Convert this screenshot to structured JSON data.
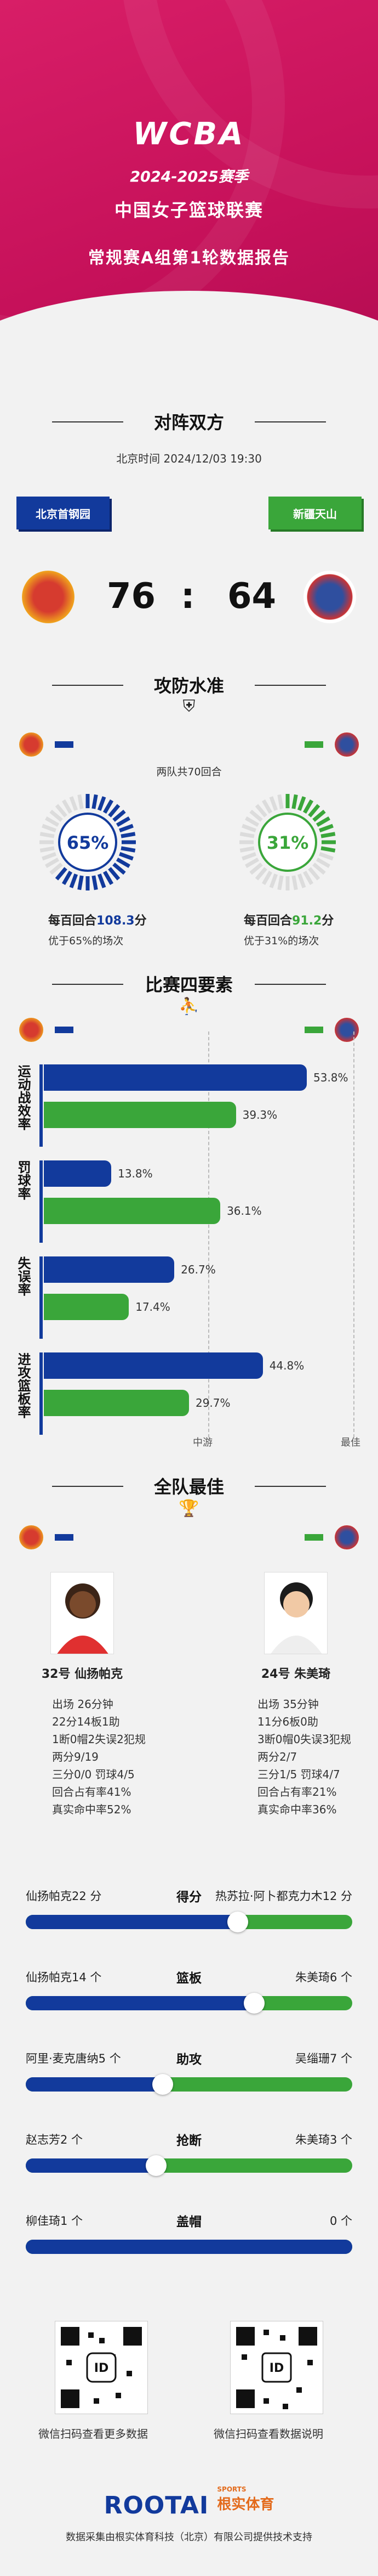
{
  "header": {
    "season": "2024-2025赛季",
    "league": "中国女子篮球联赛",
    "report": "常规赛A组第1轮数据报告",
    "logo_text": "WCBA"
  },
  "matchup": {
    "title": "对阵双方",
    "time": "北京时间 2024/12/03 19:30",
    "home": {
      "name": "北京首钢园",
      "score": "76"
    },
    "away": {
      "name": "新疆天山",
      "score": "64"
    },
    "colon": ":"
  },
  "offense": {
    "title": "攻防水准",
    "rounds": "两队共70回合",
    "home": {
      "pct": "65%",
      "per100_prefix": "每百回合",
      "per100_value": "108.3",
      "per100_suffix": "分",
      "better": "优于65%的场次",
      "fraction": 0.65
    },
    "away": {
      "pct": "31%",
      "per100_prefix": "每百回合",
      "per100_value": "91.2",
      "per100_suffix": "分",
      "better": "优于31%的场次",
      "fraction": 0.31
    }
  },
  "factors": {
    "title": "比赛四要素",
    "rows": [
      {
        "label": "运动战效率",
        "home": "53.8%",
        "away": "39.3%",
        "home_frac": 0.538,
        "away_frac": 0.393
      },
      {
        "label": "罚球率",
        "home": "13.8%",
        "away": "36.1%",
        "home_frac": 0.138,
        "away_frac": 0.361
      },
      {
        "label": "失误率",
        "home": "26.7%",
        "away": "17.4%",
        "home_frac": 0.267,
        "away_frac": 0.174
      },
      {
        "label": "进攻篮板率",
        "home": "44.8%",
        "away": "29.7%",
        "home_frac": 0.448,
        "away_frac": 0.297
      }
    ],
    "mid_label": "中游",
    "best_label": "最佳"
  },
  "best": {
    "title": "全队最佳",
    "home_player": {
      "name": "32号 仙扬帕克",
      "stats": [
        "出场 26分钟",
        "22分14板1助",
        "1断0帽2失误2犯规",
        "两分9/19",
        "三分0/0 罚球4/5",
        "回合占有率41%",
        "真实命中率52%"
      ]
    },
    "away_player": {
      "name": "24号 朱美琦",
      "stats": [
        "出场 35分钟",
        "11分6板0助",
        "3断0帽0失误3犯规",
        "两分2/7",
        "三分1/5 罚球4/7",
        "回合占有率21%",
        "真实命中率36%"
      ]
    },
    "compare": [
      {
        "label": "得分",
        "left": "仙扬帕克22 分",
        "right": "热苏拉·阿卜都克力木12 分",
        "frac": 0.65
      },
      {
        "label": "篮板",
        "left": "仙扬帕克14 个",
        "right": "朱美琦6 个",
        "frac": 0.7
      },
      {
        "label": "助攻",
        "left": "阿里·麦克唐纳5 个",
        "right": "吴缁珊7 个",
        "frac": 0.42
      },
      {
        "label": "抢断",
        "left": "赵志芳2 个",
        "right": "朱美琦3 个",
        "frac": 0.4
      },
      {
        "label": "盖帽",
        "left": "柳佳琦1 个",
        "right": "0 个",
        "frac": 1.0
      }
    ]
  },
  "qr": {
    "left_caption": "微信扫码查看更多数据",
    "right_caption": "微信扫码查看数据说明",
    "left_center": "ID",
    "right_center": "ID"
  },
  "footer": {
    "brand": "ROOTAI",
    "brand_cn": "根实体育",
    "sports": "SPORTS",
    "credit": "数据采集由根实体育科技（北京）有限公司提供技术支持"
  },
  "colors": {
    "home": "#123a9c",
    "away": "#3aa63a",
    "hero": "#d81e67"
  }
}
